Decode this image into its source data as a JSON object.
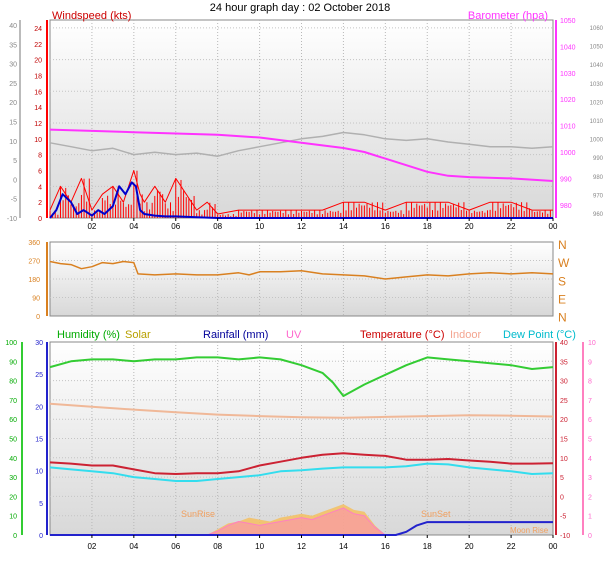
{
  "title": "24 hour graph day : 02 October 2018",
  "x_ticks": [
    "02",
    "04",
    "06",
    "08",
    "10",
    "12",
    "14",
    "16",
    "18",
    "20",
    "22",
    "00"
  ],
  "colors": {
    "wind": "#ff0000",
    "gust_axis": "#c00000",
    "avg_wind": "#0000cc",
    "baro": "#ff33ff",
    "gray_line": "#b0b0b0",
    "winddir": "#d98020",
    "humidity": "#33cc33",
    "solar": "#f5c060",
    "rainfall": "#2222cc",
    "uv": "#ff80c0",
    "temperature": "#cc2233",
    "indoor": "#f0b898",
    "dewpoint": "#33ddee",
    "label_green": "#00aa00",
    "label_olive": "#b8a000",
    "label_navy": "#000099",
    "label_pink": "#ff66cc",
    "label_red": "#cc0000",
    "label_salmon": "#f4a590",
    "label_cyan": "#00bbcc"
  },
  "chart_data": [
    {
      "type": "line",
      "title": "",
      "legend": [
        "Windspeed (kts)",
        "Barometer (hpa)"
      ],
      "x_range": [
        0,
        24
      ],
      "y_left": {
        "label": "Windspeed (kts)",
        "ylim": [
          0,
          25
        ],
        "ticks": [
          "0",
          "2",
          "4",
          "6",
          "8",
          "10",
          "12",
          "14",
          "16",
          "18",
          "20",
          "22",
          "24"
        ]
      },
      "y_outer_left": {
        "ylim": [
          -10,
          45
        ],
        "ticks": [
          "-10",
          "-5",
          "0",
          "5",
          "10",
          "15",
          "20",
          "25",
          "30",
          "35",
          "40"
        ]
      },
      "y_right": {
        "label": "Barometer (hpa)",
        "ylim": [
          975,
          1050
        ],
        "ticks": [
          "980",
          "990",
          "1000",
          "1010",
          "1020",
          "1030",
          "1040",
          "1050"
        ]
      },
      "y_outer_right": {
        "ticks": [
          "960",
          "970",
          "980",
          "990",
          "1000",
          "1010",
          "1020",
          "1030",
          "1040",
          "1050",
          "1060"
        ]
      },
      "series": [
        {
          "name": "Barometer (hpa)",
          "axis": "right",
          "x": [
            0,
            2,
            4,
            6,
            8,
            10,
            12,
            14,
            15,
            16,
            17,
            18,
            19,
            20,
            22,
            24
          ],
          "y": [
            1008.5,
            1008,
            1007.5,
            1007,
            1006.5,
            1005.5,
            1003.5,
            1001.5,
            1000,
            997.5,
            995,
            992.5,
            991,
            990.5,
            990,
            989
          ]
        },
        {
          "name": "",
          "axis": "left",
          "x": [
            0,
            1,
            2,
            3,
            4,
            5,
            6,
            7,
            8,
            9,
            10,
            11,
            12,
            13,
            14,
            15,
            16,
            17,
            18,
            19,
            20,
            21,
            22,
            23,
            24
          ],
          "y": [
            9.5,
            9.0,
            8.5,
            8.8,
            8.0,
            8.3,
            8.0,
            8.2,
            7.8,
            8.5,
            9.0,
            9.5,
            10.0,
            10.3,
            10.8,
            10.5,
            10.0,
            9.8,
            10.0,
            9.6,
            9.3,
            9.0,
            9.0,
            8.8,
            9.0
          ]
        },
        {
          "name": "Windspeed (kts)",
          "axis": "left",
          "x": [
            0,
            0.5,
            1,
            1.5,
            2,
            2.5,
            3,
            3.5,
            4,
            4.3,
            4.5,
            5,
            5.5,
            6,
            6.5,
            7,
            7.5,
            8,
            9,
            10,
            11,
            12,
            13,
            14,
            15,
            16,
            17,
            18,
            19,
            20,
            21,
            22,
            23,
            24
          ],
          "y": [
            1,
            4,
            2,
            5,
            1,
            3,
            4,
            2,
            6,
            3,
            2,
            4,
            2,
            5,
            3,
            1,
            2,
            0.5,
            1,
            1,
            1,
            1,
            1,
            2,
            2,
            1,
            2,
            2,
            2,
            1,
            2,
            2,
            1,
            1
          ]
        },
        {
          "name": "",
          "axis": "left",
          "x": [
            0,
            0.3,
            0.6,
            1,
            1.3,
            1.6,
            2,
            2.3,
            2.6,
            3,
            3.3,
            3.6,
            3.9,
            4.1,
            4.3,
            4.5,
            5,
            5.5,
            6,
            7,
            8,
            9,
            10,
            12,
            14,
            16,
            18,
            20,
            22,
            24
          ],
          "y": [
            0,
            1,
            3,
            2,
            0.5,
            1,
            0.3,
            1,
            0.5,
            1.5,
            4,
            3,
            4.5,
            4,
            1,
            0.5,
            0.3,
            0.2,
            0.2,
            0.1,
            0,
            0,
            0,
            0,
            0,
            0,
            0,
            0,
            0,
            0
          ]
        }
      ]
    },
    {
      "type": "line",
      "title": "",
      "y_left": {
        "ylim": [
          0,
          360
        ],
        "ticks": [
          "0",
          "90",
          "180",
          "270",
          "360"
        ]
      },
      "y_right": {
        "ticks": [
          "N",
          "W",
          "S",
          "E",
          "N"
        ]
      },
      "series": [
        {
          "name": "",
          "x": [
            0,
            0.5,
            1,
            1.5,
            2,
            2.5,
            3,
            3.5,
            4,
            4.2,
            5,
            6,
            7,
            8,
            9,
            9.5,
            10,
            11,
            12,
            13,
            14,
            15,
            16,
            17,
            18,
            19,
            20,
            21,
            22,
            23,
            24
          ],
          "y": [
            265,
            255,
            250,
            230,
            240,
            260,
            255,
            265,
            260,
            205,
            200,
            205,
            200,
            200,
            210,
            200,
            215,
            215,
            220,
            205,
            200,
            195,
            180,
            190,
            200,
            195,
            205,
            210,
            205,
            210,
            205
          ]
        }
      ]
    },
    {
      "type": "line",
      "title": "",
      "legend": [
        "Humidity (%)",
        "Solar",
        "Rainfall (mm)",
        "UV",
        "Temperature (°C)",
        "Indoor",
        "Dew Point (°C)"
      ],
      "y_left": {
        "ylim": [
          0,
          100
        ],
        "ticks": [
          "0",
          "10",
          "20",
          "30",
          "40",
          "50",
          "60",
          "70",
          "80",
          "90",
          "100"
        ]
      },
      "y_left_inner": {
        "ylim": [
          0,
          30
        ],
        "ticks": [
          "0",
          "5",
          "10",
          "15",
          "20",
          "25",
          "30"
        ]
      },
      "y_right": {
        "ylim": [
          -10,
          40
        ],
        "ticks": [
          "-10",
          "-5",
          "0",
          "5",
          "10",
          "15",
          "20",
          "25",
          "30",
          "35",
          "40"
        ]
      },
      "y_right_outer": {
        "ticks": [
          "0",
          "1",
          "2",
          "3",
          "4",
          "5",
          "6",
          "7",
          "8",
          "9",
          "10"
        ]
      },
      "annotations": [
        "SunRise",
        "SunSet",
        "Moon Rise"
      ],
      "series": [
        {
          "name": "Humidity (%)",
          "axis": "left",
          "x": [
            0,
            1,
            2,
            3,
            4,
            5,
            6,
            7,
            8,
            9,
            10,
            11,
            12,
            13,
            13.5,
            14,
            14.5,
            15,
            16,
            17,
            18,
            19,
            20,
            21,
            22,
            23,
            24
          ],
          "y": [
            87,
            90,
            91,
            91,
            90,
            91,
            91,
            92,
            92,
            91,
            92,
            91,
            88,
            84,
            79,
            72,
            75,
            78,
            83,
            88,
            92,
            91,
            90,
            89,
            88,
            86,
            87
          ]
        },
        {
          "name": "Indoor",
          "axis": "right",
          "x": [
            0,
            2,
            4,
            6,
            8,
            10,
            12,
            14,
            16,
            18,
            20,
            22,
            24
          ],
          "y": [
            24,
            23.2,
            22.5,
            21.8,
            21.2,
            20.8,
            20.5,
            20.4,
            20.6,
            20.8,
            21,
            20.9,
            20.7
          ]
        },
        {
          "name": "Temperature (°C)",
          "axis": "right",
          "x": [
            0,
            1,
            2,
            3,
            4,
            5,
            6,
            7,
            8,
            9,
            10,
            11,
            12,
            13,
            14,
            15,
            16,
            17,
            18,
            19,
            20,
            21,
            22,
            23,
            24
          ],
          "y": [
            8.8,
            8.5,
            8,
            8,
            7,
            6,
            5.8,
            6,
            6,
            6.5,
            8,
            9,
            10,
            10.8,
            11.2,
            10.8,
            10.5,
            9.5,
            9.5,
            9.7,
            9.3,
            9,
            8.5,
            8.5,
            8.6
          ]
        },
        {
          "name": "Dew Point (°C)",
          "axis": "right",
          "x": [
            0,
            1,
            2,
            3,
            4,
            5,
            6,
            7,
            8,
            9,
            10,
            11,
            12,
            13,
            14,
            15,
            16,
            17,
            18,
            19,
            20,
            21,
            22,
            23,
            24
          ],
          "y": [
            7.5,
            7,
            6.5,
            6,
            5,
            4.5,
            4,
            4,
            4.5,
            5,
            5.5,
            6.5,
            6.8,
            7.2,
            7.5,
            7.5,
            7.5,
            7.8,
            8.5,
            8.3,
            7.5,
            7,
            6.5,
            5.8,
            6
          ]
        },
        {
          "name": "Solar",
          "axis": "left",
          "x": [
            7.5,
            8,
            8.5,
            9,
            9.5,
            10,
            10.5,
            11,
            11.5,
            12,
            12.5,
            13,
            13.5,
            14,
            14.5,
            15,
            15.5,
            16
          ],
          "y": [
            0,
            3,
            6,
            7,
            9,
            8,
            7,
            9,
            10,
            11,
            10,
            12,
            14,
            16,
            13,
            12,
            5,
            0
          ]
        },
        {
          "name": "UV",
          "axis": "left",
          "x": [
            7.5,
            8,
            8.5,
            9,
            9.5,
            10,
            10.5,
            11,
            11.5,
            12,
            12.5,
            13,
            13.5,
            14,
            14.5,
            15,
            15.5,
            16
          ],
          "y": [
            0,
            2,
            5,
            7,
            6,
            5,
            6,
            7,
            8,
            9,
            8,
            10,
            12,
            14,
            11,
            10,
            4,
            0
          ]
        },
        {
          "name": "Rainfall (mm)",
          "axis": "left_inner",
          "x": [
            0,
            16.5,
            17,
            17.5,
            18,
            18.5,
            24
          ],
          "y": [
            0,
            0,
            0.5,
            1.5,
            2,
            2,
            2
          ]
        }
      ]
    }
  ]
}
